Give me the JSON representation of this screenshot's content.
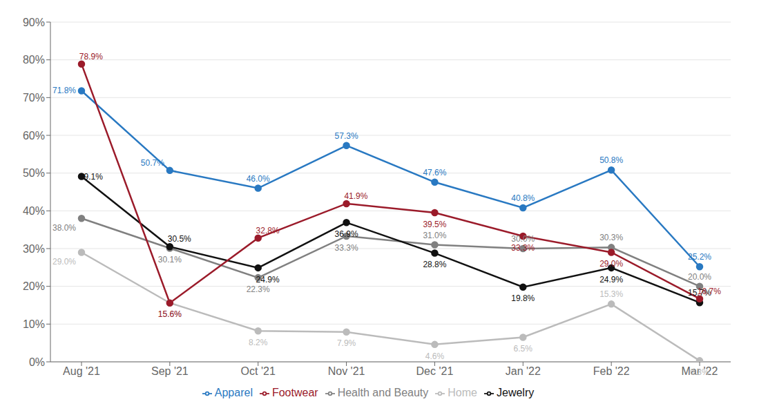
{
  "chart_data": {
    "type": "line",
    "categories": [
      "Aug '21",
      "Sep '21",
      "Oct '21",
      "Nov '21",
      "Dec '21",
      "Jan '22",
      "Feb '22",
      "Mar '22"
    ],
    "series": [
      {
        "name": "Apparel",
        "color": "#2979C2",
        "marker": "circle",
        "values": [
          71.8,
          50.7,
          46.0,
          57.3,
          47.6,
          40.8,
          50.8,
          25.2
        ],
        "value_labels": [
          "71.8%",
          "50.7%",
          "46.0%",
          "57.3%",
          "47.6%",
          "40.8%",
          "50.8%",
          "25.2%"
        ]
      },
      {
        "name": "Health and Beauty",
        "color": "#808080",
        "marker": "circle",
        "values": [
          38.0,
          30.1,
          22.3,
          33.3,
          31.0,
          30.0,
          30.3,
          20.0
        ],
        "value_labels": [
          "38.0%",
          "30.1%",
          "22.3%",
          "33.3%",
          "31.0%",
          "30.0%",
          "30.3%",
          "20.0%"
        ]
      },
      {
        "name": "Home",
        "color": "#BBBBBB",
        "marker": "circle",
        "values": [
          29.0,
          15.6,
          8.2,
          7.9,
          4.6,
          6.5,
          15.3,
          0.3
        ],
        "value_labels": [
          "29.0%",
          "15.6%",
          "8.2%",
          "7.9%",
          "4.6%",
          "6.5%",
          "15.3%",
          "0.3%"
        ]
      },
      {
        "name": "Jewelry",
        "color": "#111111",
        "marker": "circle",
        "values": [
          49.1,
          30.5,
          24.9,
          36.9,
          28.8,
          19.8,
          24.9,
          15.7
        ],
        "value_labels": [
          "49.1%",
          "30.5%",
          "24.9%",
          "36.9%",
          "28.8%",
          "19.8%",
          "24.9%",
          "15.7%"
        ]
      },
      {
        "name": "Footwear",
        "color": "#9B1B2A",
        "marker": "circle",
        "values": [
          78.9,
          15.6,
          32.8,
          41.9,
          39.5,
          33.3,
          29.0,
          16.7
        ],
        "value_labels": [
          "78.9%",
          "15.6%",
          "32.8%",
          "41.9%",
          "39.5%",
          "33.3%",
          "29.0%",
          "16.7%"
        ]
      }
    ],
    "ylim": [
      0,
      90
    ],
    "yticks": [
      {
        "value": 0,
        "label": "0%"
      },
      {
        "value": 10,
        "label": "10%"
      },
      {
        "value": 20,
        "label": "20%"
      },
      {
        "value": 30,
        "label": "30%"
      },
      {
        "value": 40,
        "label": "40%"
      },
      {
        "value": 50,
        "label": "50%"
      },
      {
        "value": 60,
        "label": "60%"
      },
      {
        "value": 70,
        "label": "70%"
      },
      {
        "value": 80,
        "label": "80%"
      },
      {
        "value": 90,
        "label": "90%"
      }
    ],
    "grid": true,
    "legend": "bottom",
    "data_labels": true
  }
}
